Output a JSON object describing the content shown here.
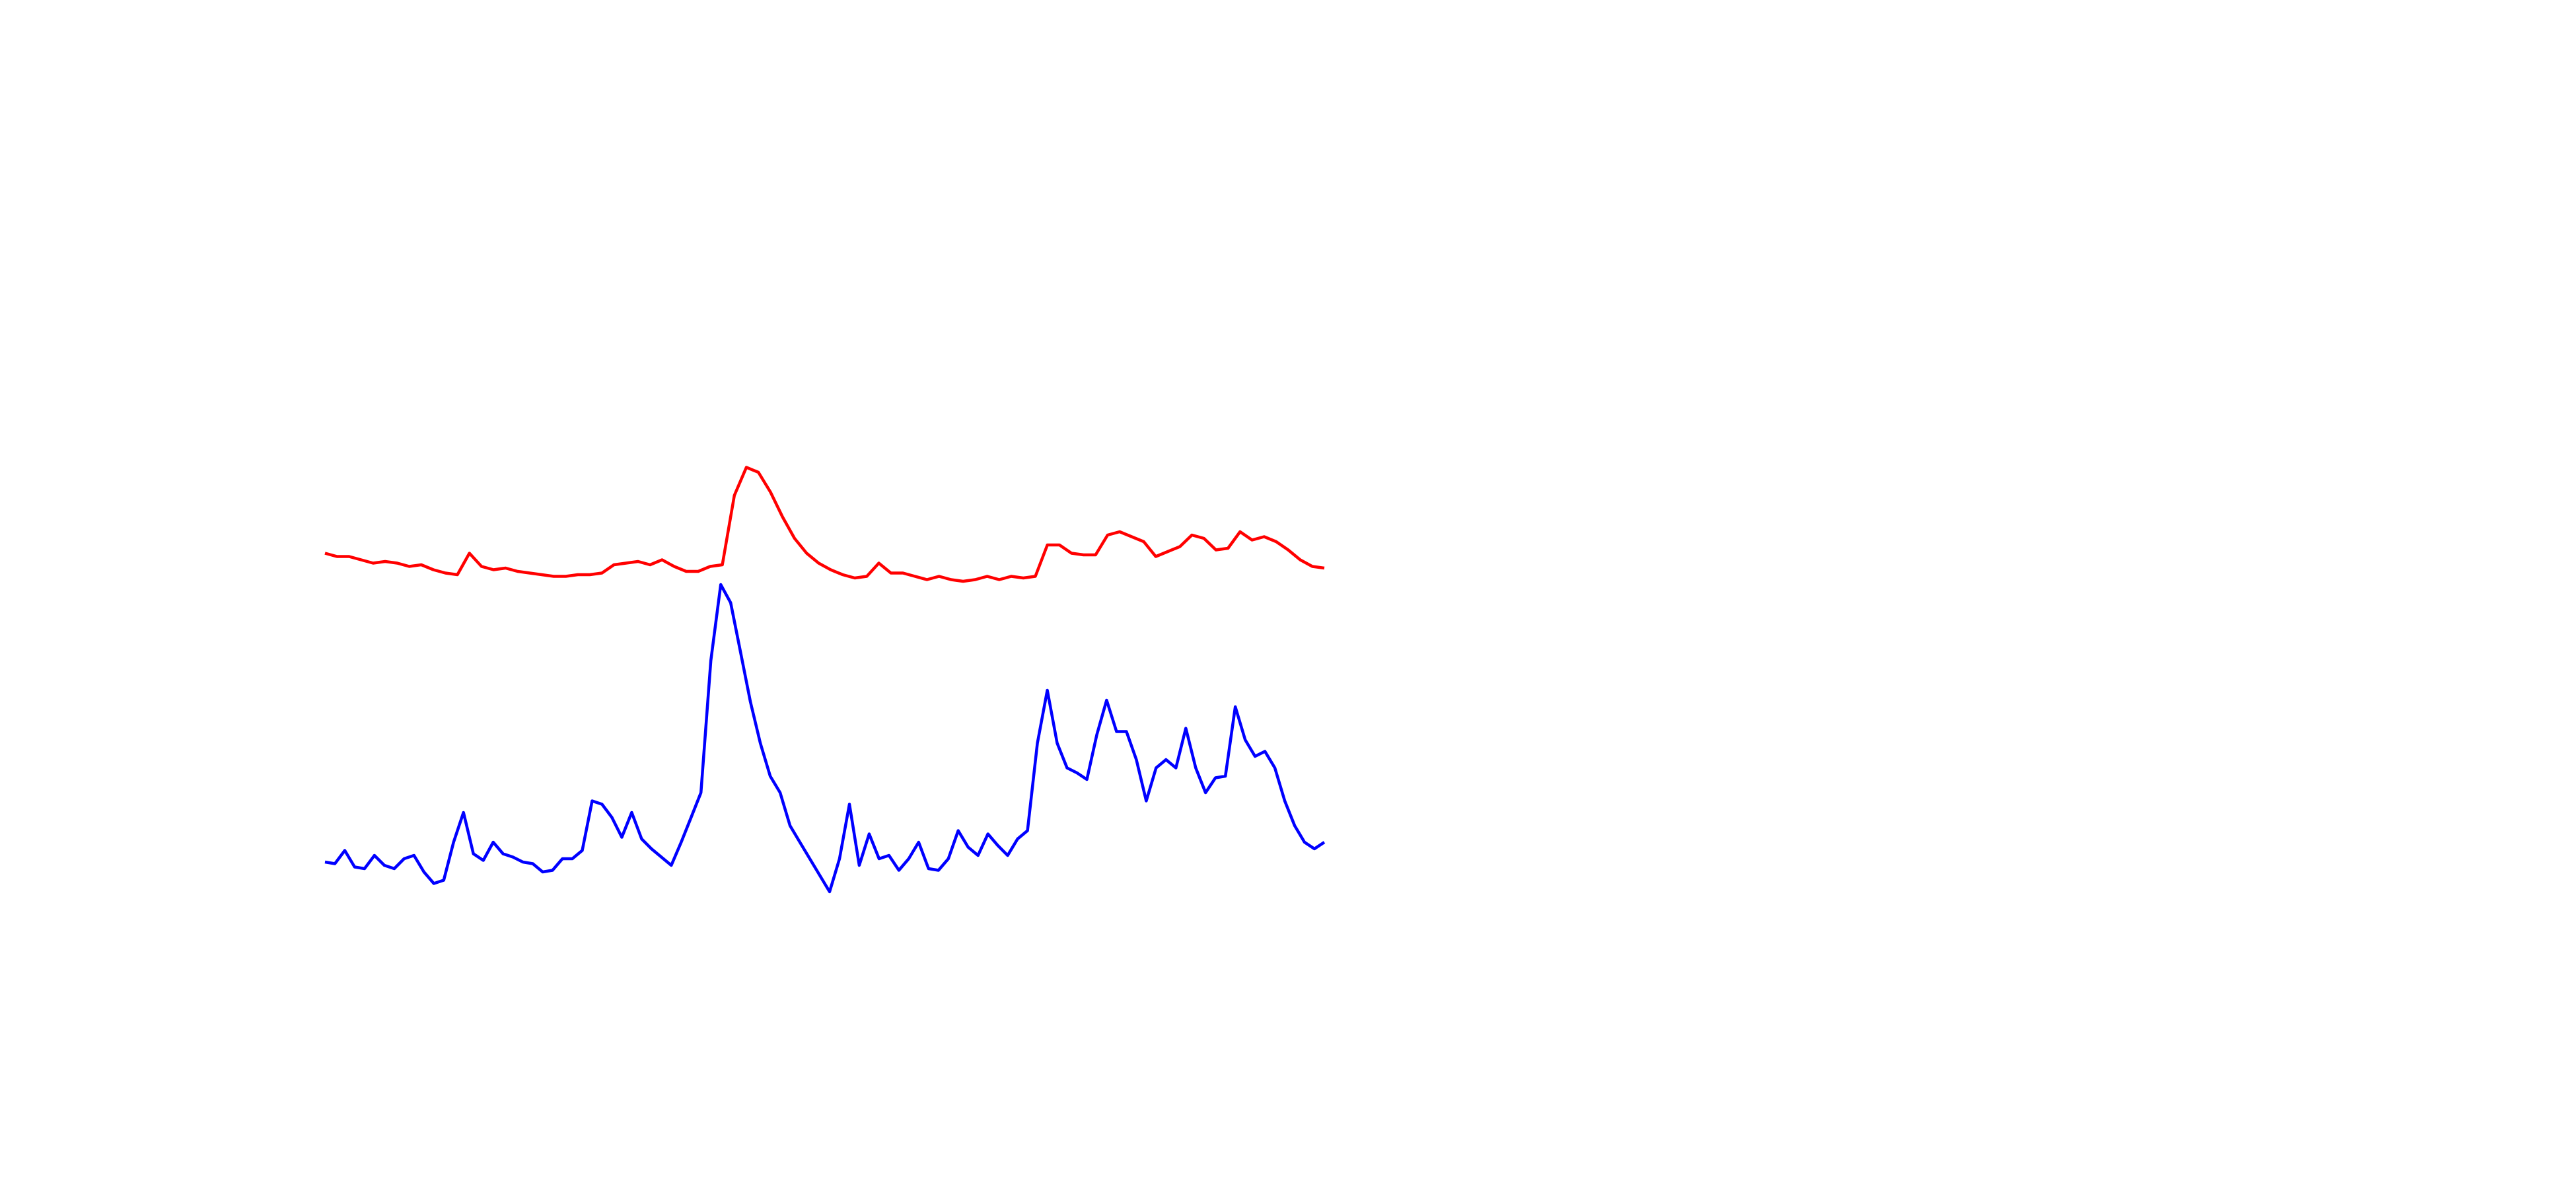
{
  "chart_data": {
    "type": "line",
    "ylim": [
      0,
      300
    ],
    "series": [
      {
        "color": "#ff0000",
        "values": [
          225,
          223,
          223,
          221,
          219,
          220,
          219,
          217,
          218,
          215,
          213,
          212,
          225,
          217,
          215,
          216,
          214,
          213,
          212,
          211,
          211,
          212,
          212,
          213,
          218,
          219,
          220,
          218,
          221,
          217,
          214,
          214,
          217,
          218,
          260,
          277,
          274,
          262,
          247,
          234,
          225,
          219,
          215,
          212,
          210,
          211,
          219,
          213,
          213,
          211,
          209,
          211,
          209,
          208,
          209,
          211,
          209,
          211,
          210,
          211,
          230,
          230,
          225,
          224,
          224,
          236,
          238,
          235,
          232,
          223,
          226,
          229,
          236,
          234,
          227,
          228,
          238,
          233,
          235,
          232,
          227,
          221,
          217,
          216
        ]
      },
      {
        "color": "#0000ff",
        "values": [
          38,
          37,
          45,
          35,
          34,
          42,
          36,
          34,
          40,
          42,
          32,
          25,
          27,
          50,
          68,
          43,
          39,
          50,
          43,
          41,
          38,
          37,
          32,
          33,
          40,
          40,
          45,
          75,
          73,
          65,
          53,
          68,
          52,
          46,
          41,
          36,
          50,
          65,
          80,
          160,
          206,
          195,
          165,
          135,
          110,
          90,
          80,
          60,
          50,
          40,
          30,
          20,
          40,
          73,
          36,
          55,
          40,
          42,
          33,
          40,
          50,
          34,
          33,
          40,
          57,
          47,
          42,
          55,
          48,
          42,
          52,
          57,
          110,
          142,
          110,
          95,
          92,
          88,
          115,
          136,
          117,
          117,
          100,
          75,
          95,
          100,
          95,
          119,
          95,
          80,
          89,
          90,
          132,
          112,
          102,
          105,
          95,
          75,
          60,
          50,
          46,
          50
        ]
      }
    ]
  }
}
